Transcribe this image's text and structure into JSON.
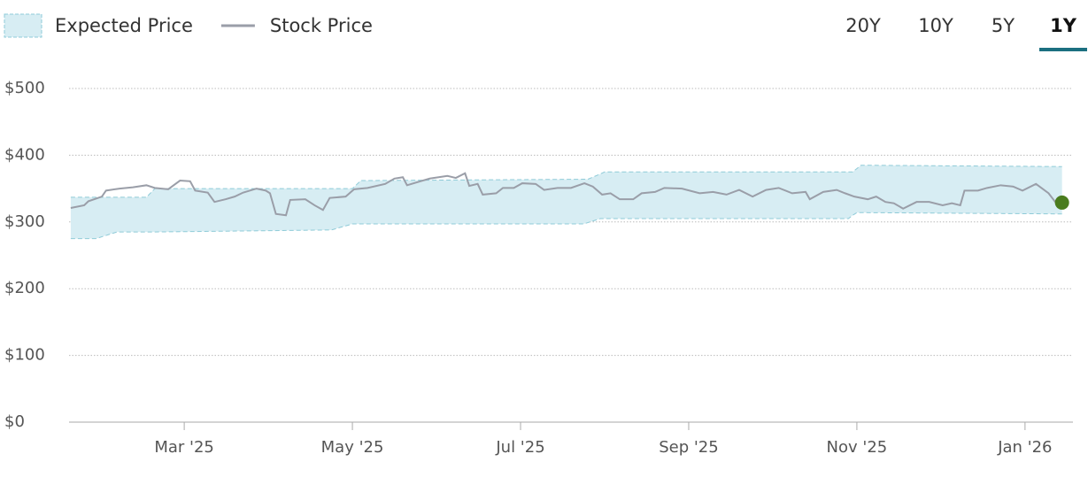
{
  "chart_data": {
    "type": "line",
    "ranges": [
      "20Y",
      "10Y",
      "5Y",
      "1Y"
    ],
    "active_range": "1Y",
    "series": [
      {
        "name": "Expected Price",
        "type": "band",
        "color": "#d7edf3",
        "edge_color": "#8fcbd8",
        "x": [
          0.65,
          0.95,
          1.2,
          1.55,
          1.65,
          3.75,
          4.0,
          4.1,
          6.75,
          6.8,
          6.95,
          7.0,
          9.9,
          9.95,
          10.0,
          10.05,
          12.44
        ],
        "upper": [
          337,
          337,
          337,
          337,
          350,
          350,
          350,
          362,
          364,
          364,
          372,
          375,
          375,
          375,
          380,
          385,
          383
        ],
        "lower": [
          275,
          275,
          285,
          285,
          285,
          288,
          297,
          297,
          297,
          299,
          305,
          305,
          305,
          310,
          314,
          314,
          312
        ]
      },
      {
        "name": "Stock Price",
        "type": "line",
        "color": "#9a9ea8",
        "last_point_color": "#4a7c1e",
        "x": [
          0.65,
          0.81,
          0.86,
          1.02,
          1.07,
          1.23,
          1.39,
          1.55,
          1.65,
          1.81,
          1.95,
          2.07,
          2.13,
          2.28,
          2.36,
          2.49,
          2.6,
          2.7,
          2.86,
          2.97,
          3.02,
          3.09,
          3.21,
          3.26,
          3.44,
          3.55,
          3.65,
          3.73,
          3.92,
          4.02,
          4.18,
          4.39,
          4.5,
          4.6,
          4.65,
          4.81,
          4.92,
          5.13,
          5.23,
          5.34,
          5.39,
          5.49,
          5.55,
          5.71,
          5.79,
          5.92,
          6.02,
          6.18,
          6.28,
          6.44,
          6.6,
          6.76,
          6.86,
          6.97,
          7.07,
          7.18,
          7.34,
          7.44,
          7.6,
          7.71,
          7.92,
          8.13,
          8.29,
          8.45,
          8.6,
          8.76,
          8.92,
          9.07,
          9.23,
          9.39,
          9.44,
          9.6,
          9.76,
          9.86,
          9.97,
          10.13,
          10.23,
          10.34,
          10.44,
          10.55,
          10.71,
          10.86,
          11.02,
          11.13,
          11.23,
          11.28,
          11.44,
          11.55,
          11.71,
          11.86,
          11.97,
          12.13,
          12.28,
          12.39,
          12.44
        ],
        "values": [
          321,
          325,
          331,
          338,
          347,
          350,
          352,
          355,
          351,
          349,
          362,
          361,
          347,
          344,
          330,
          334,
          338,
          344,
          350,
          347,
          343,
          312,
          310,
          333,
          334,
          325,
          318,
          336,
          338,
          349,
          351,
          357,
          365,
          367,
          355,
          361,
          365,
          369,
          366,
          373,
          354,
          357,
          341,
          343,
          351,
          351,
          358,
          357,
          348,
          351,
          351,
          358,
          353,
          341,
          343,
          334,
          334,
          343,
          345,
          351,
          350,
          343,
          345,
          341,
          348,
          338,
          348,
          351,
          343,
          345,
          334,
          345,
          348,
          343,
          338,
          334,
          338,
          330,
          328,
          320,
          330,
          330,
          325,
          328,
          325,
          347,
          347,
          351,
          355,
          353,
          347,
          357,
          343,
          325,
          329
        ]
      }
    ],
    "xlim": [
      0.63,
      12.57
    ],
    "xticks": [
      {
        "value": 2,
        "label": "Mar '25"
      },
      {
        "value": 4,
        "label": "May '25"
      },
      {
        "value": 6,
        "label": "Jul '25"
      },
      {
        "value": 8,
        "label": "Sep '25"
      },
      {
        "value": 10,
        "label": "Nov '25"
      },
      {
        "value": 12,
        "label": "Jan '26"
      }
    ],
    "ylim": [
      0,
      500
    ],
    "yticks": [
      {
        "value": 0,
        "label": "$0"
      },
      {
        "value": 100,
        "label": "$100"
      },
      {
        "value": 200,
        "label": "$200"
      },
      {
        "value": 300,
        "label": "$300"
      },
      {
        "value": 400,
        "label": "$400"
      },
      {
        "value": 500,
        "label": "$500"
      }
    ],
    "grid": true
  }
}
